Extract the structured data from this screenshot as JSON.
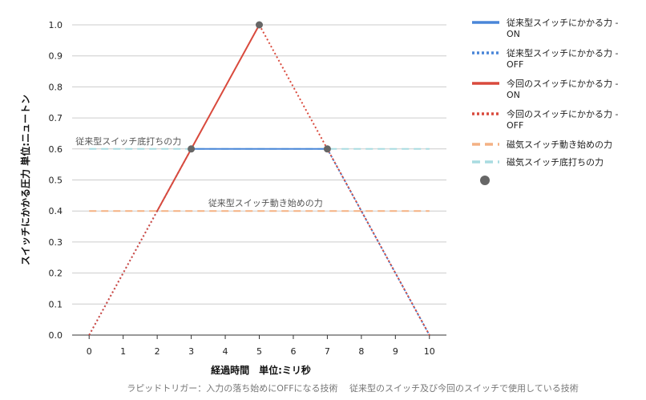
{
  "chart_data": {
    "type": "line",
    "xlabel": "経過時間　単位:ミリ秒",
    "ylabel": "スイッチにかかる圧力 単位:ニュートン",
    "caption": "ラピッドトリガー：入力の落ち始めにOFFになる技術　 従来型のスイッチ及び今回のスイッチで使用している技術",
    "xlim": [
      -0.5,
      10.5
    ],
    "ylim": [
      0,
      1.0
    ],
    "x_ticks": [
      "0",
      "1",
      "2",
      "3",
      "4",
      "5",
      "6",
      "7",
      "8",
      "9",
      "10"
    ],
    "y_ticks": [
      "0.0",
      "0.1",
      "0.2",
      "0.3",
      "0.4",
      "0.5",
      "0.6",
      "0.7",
      "0.8",
      "0.9",
      "1.0"
    ],
    "grid": "horizontal",
    "legend_position": "right",
    "series": [
      {
        "name": "従来型スイッチにかかる力 - ON",
        "style": "solid",
        "color": "#4a86d8",
        "x": [
          3,
          7
        ],
        "y": [
          0.6,
          0.6
        ]
      },
      {
        "name": "従来型スイッチにかかる力 - OFF",
        "style": "dotted",
        "color": "#4a86d8",
        "x": [
          0,
          3,
          null,
          7,
          10
        ],
        "y": [
          0.0,
          0.6,
          null,
          0.6,
          0.0
        ]
      },
      {
        "name": "今回のスイッチにかかる力 - ON",
        "style": "solid",
        "color": "#d94a3d",
        "x": [
          2,
          5
        ],
        "y": [
          0.4,
          1.0
        ]
      },
      {
        "name": "今回のスイッチにかかる力 - OFF",
        "style": "dotted",
        "color": "#d94a3d",
        "x": [
          0,
          2,
          null,
          5,
          10
        ],
        "y": [
          0.0,
          0.4,
          null,
          1.0,
          0.0
        ]
      },
      {
        "name": "磁気スイッチ動き始めの力",
        "style": "dashed",
        "color": "#f4b183",
        "x": [
          0,
          10
        ],
        "y": [
          0.4,
          0.4
        ]
      },
      {
        "name": "磁気スイッチ底打ちの力",
        "style": "dashed",
        "color": "#a8dbe0",
        "x": [
          0,
          10
        ],
        "y": [
          0.6,
          0.6
        ]
      },
      {
        "name": "",
        "style": "points",
        "color": "#666666",
        "x": [
          3,
          5,
          7
        ],
        "y": [
          0.6,
          1.0,
          0.6
        ]
      }
    ],
    "annotations": [
      {
        "text": "従来型スイッチ底打ちの力",
        "x": -0.4,
        "y": 0.6
      },
      {
        "text": "従来型スイッチ動き始めの力",
        "x": 3.5,
        "y": 0.4
      }
    ]
  }
}
